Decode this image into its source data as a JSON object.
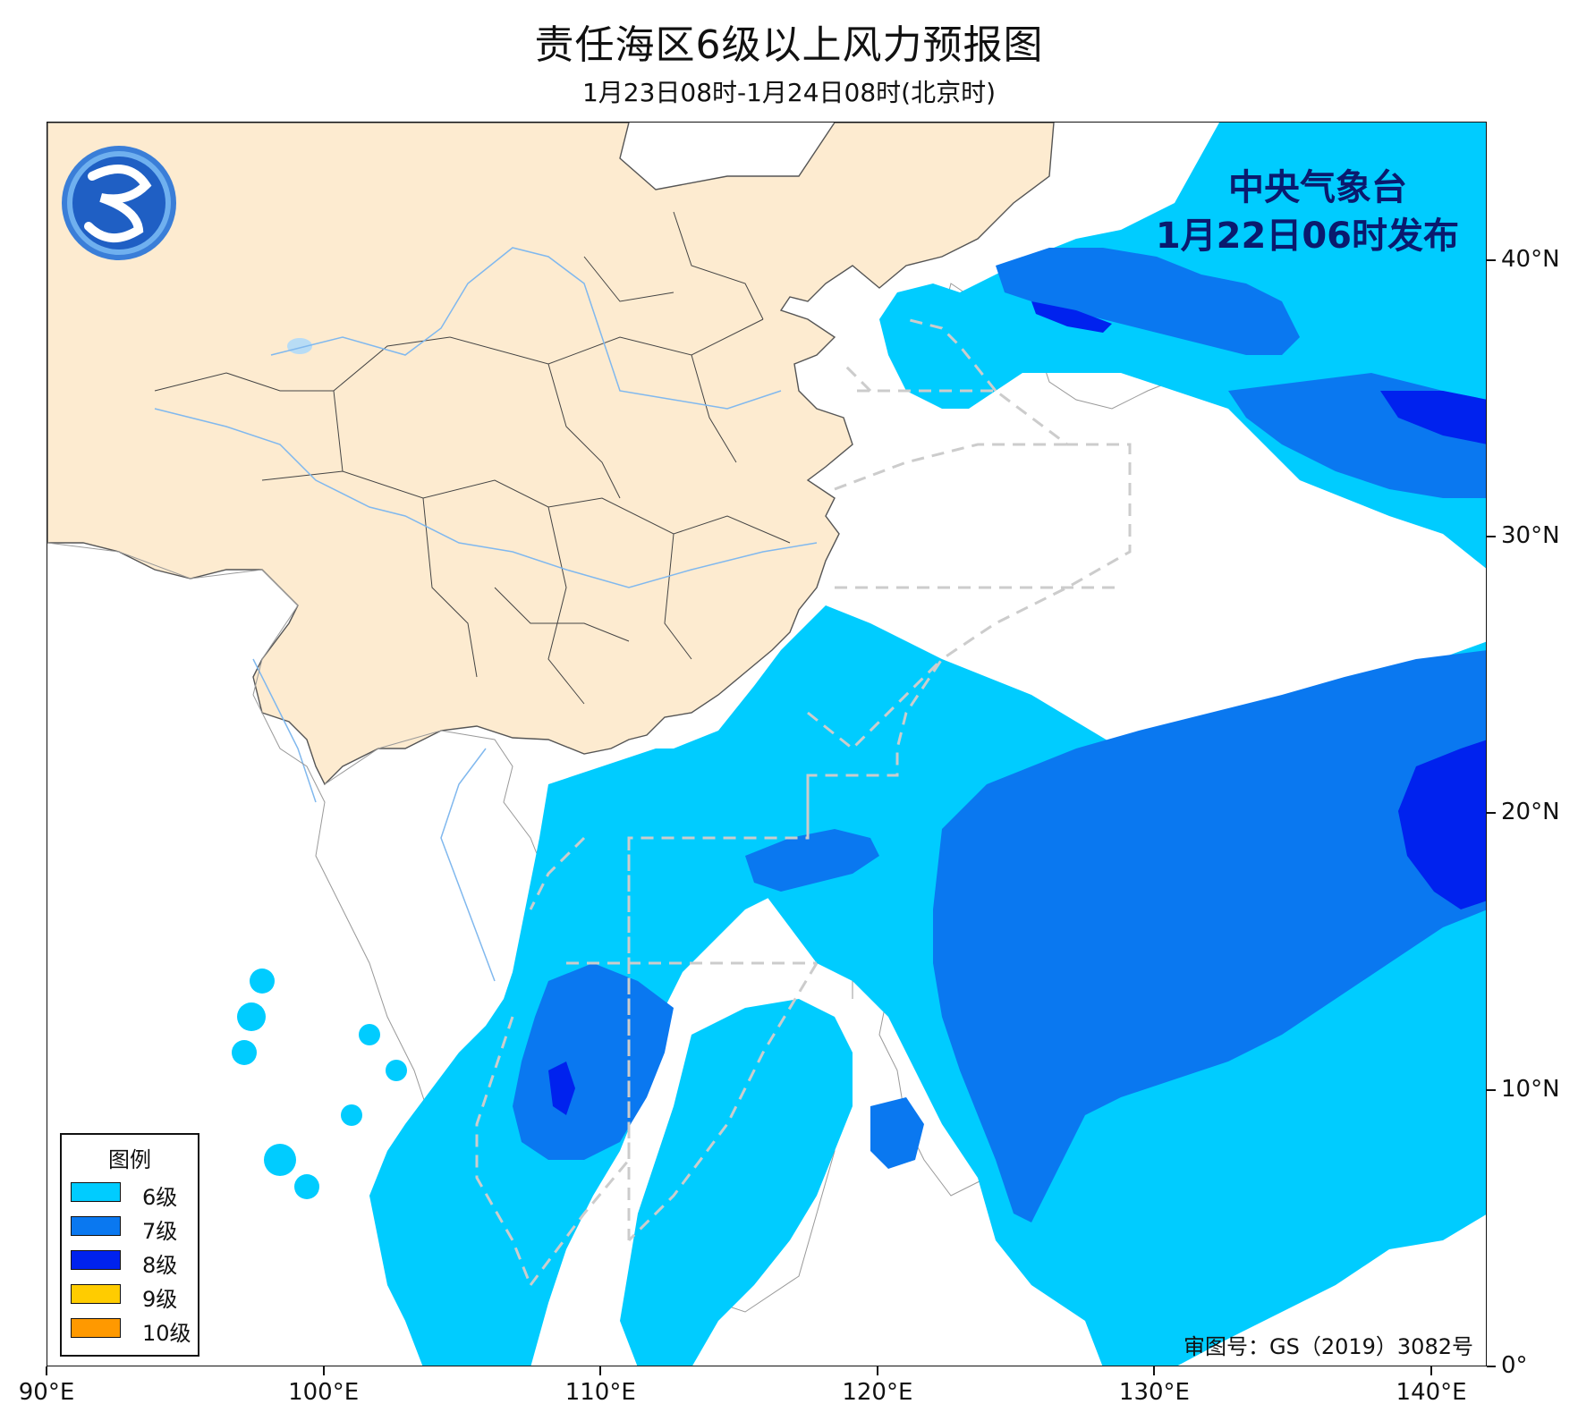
{
  "title": "责任海区6级以上风力预报图",
  "subtitle": "1月23日08时-1月24日08时(北京时)",
  "publisher": {
    "name": "中央气象台",
    "issued": "1月22日06时发布"
  },
  "review_number": "审图号：GS（2019）3082号",
  "logo": "cma-logo",
  "legend": {
    "title": "图例",
    "items": [
      {
        "label": "6级",
        "color": "#00ccff"
      },
      {
        "label": "7级",
        "color": "#0a78f0"
      },
      {
        "label": "8级",
        "color": "#0022ee"
      },
      {
        "label": "9级",
        "color": "#ffcc00"
      },
      {
        "label": "10级",
        "color": "#ff9900"
      }
    ]
  },
  "colors": {
    "land": "#fdebd0",
    "sea": "#ffffff",
    "river": "#80b8ee",
    "boundary": "#cccccc"
  },
  "axes": {
    "lon_range": [
      90,
      142
    ],
    "lat_range": [
      0,
      45
    ],
    "x_ticks": [
      {
        "value": 90,
        "label": "90°E"
      },
      {
        "value": 100,
        "label": "100°E"
      },
      {
        "value": 110,
        "label": "110°E"
      },
      {
        "value": 120,
        "label": "120°E"
      },
      {
        "value": 130,
        "label": "130°E"
      },
      {
        "value": 140,
        "label": "140°E"
      }
    ],
    "y_ticks": [
      {
        "value": 0,
        "label": "0°"
      },
      {
        "value": 10,
        "label": "10°N"
      },
      {
        "value": 20,
        "label": "20°N"
      },
      {
        "value": 30,
        "label": "30°N"
      },
      {
        "value": 40,
        "label": "40°N"
      }
    ]
  }
}
